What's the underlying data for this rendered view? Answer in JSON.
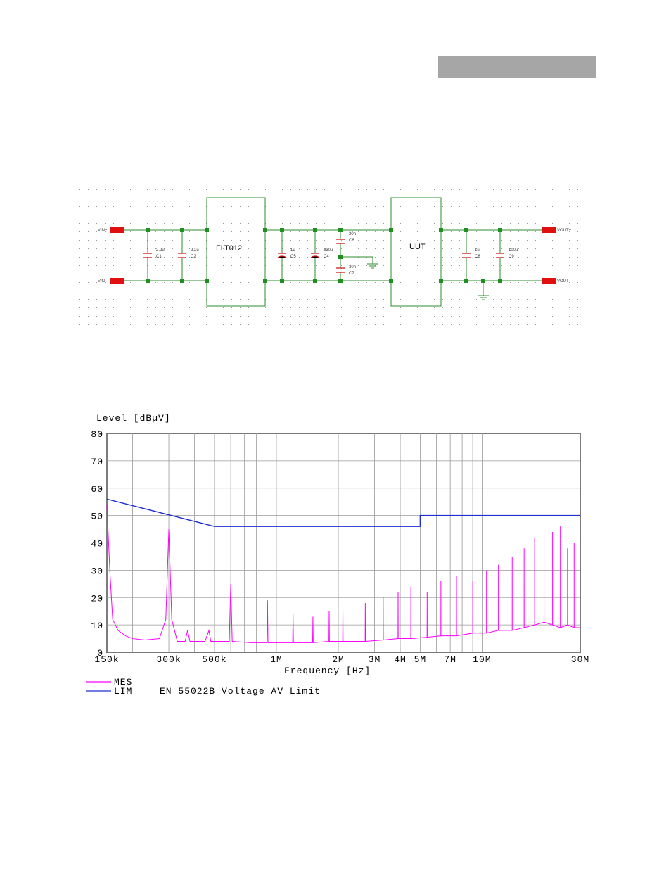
{
  "schematic": {
    "ports": [
      "VIN+",
      "VIN-",
      "VOUT+",
      "VOUT-"
    ],
    "blocks": [
      "FLT012",
      "UUT"
    ],
    "components": [
      {
        "value": "2.2u",
        "ref": "C1"
      },
      {
        "value": "2.2u",
        "ref": "C2"
      },
      {
        "value": "1u",
        "ref": "C5"
      },
      {
        "value": "330u",
        "ref": "C4"
      },
      {
        "value": "30n",
        "ref": "C6"
      },
      {
        "value": "30n",
        "ref": "C7"
      },
      {
        "value": "1u",
        "ref": "C8"
      },
      {
        "value": "100u",
        "ref": "C9"
      }
    ]
  },
  "chart_data": {
    "type": "line",
    "ylabel": "Level [dBµV]",
    "xlabel": "Frequency [Hz]",
    "log_x": true,
    "grid": true,
    "xlim": [
      150000,
      30000000
    ],
    "ylim": [
      0,
      80
    ],
    "xticks": [
      {
        "value": 150000,
        "label": "150k"
      },
      {
        "value": 300000,
        "label": "300k"
      },
      {
        "value": 500000,
        "label": "500k"
      },
      {
        "value": 1000000,
        "label": "1M"
      },
      {
        "value": 2000000,
        "label": "2M"
      },
      {
        "value": 3000000,
        "label": "3M"
      },
      {
        "value": 4000000,
        "label": "4M"
      },
      {
        "value": 5000000,
        "label": "5M"
      },
      {
        "value": 7000000,
        "label": "7M"
      },
      {
        "value": 10000000,
        "label": "10M"
      },
      {
        "value": 30000000,
        "label": "30M"
      }
    ],
    "xminor": [
      200000,
      400000,
      600000,
      700000,
      800000,
      900000,
      6000000,
      8000000,
      9000000,
      20000000
    ],
    "yticks": [
      0,
      10,
      20,
      30,
      40,
      50,
      60,
      70,
      80
    ],
    "series": [
      {
        "name": "MES",
        "color": "#ff00ff",
        "x": [
          150000,
          155000,
          160000,
          170000,
          185000,
          200000,
          230000,
          270000,
          290000,
          300000,
          310000,
          330000,
          360000,
          370000,
          380000,
          450000,
          470000,
          480000,
          590000,
          600000,
          610000,
          750000,
          900000,
          905000,
          910000,
          1200000,
          1205000,
          1210000,
          1500000,
          1505000,
          1510000,
          1800000,
          1805000,
          1810000,
          2100000,
          2105000,
          2110000,
          2700000,
          2705000,
          2710000,
          3300000,
          3305000,
          3310000,
          3900000,
          3905000,
          3910000,
          4500000,
          4505000,
          4510000,
          5400000,
          5405000,
          5410000,
          6300000,
          6305000,
          6310000,
          7500000,
          7505000,
          7510000,
          9000000,
          9005000,
          9010000,
          10500000,
          10505000,
          10510000,
          12000000,
          12005000,
          12010000,
          14000000,
          14005000,
          14010000,
          16000000,
          16005000,
          16010000,
          18000000,
          18005000,
          18010000,
          20000000,
          20005000,
          20010000,
          22000000,
          22005000,
          22010000,
          24000000,
          24005000,
          24010000,
          26000000,
          26005000,
          26010000,
          28000000,
          28005000,
          28010000,
          30000000
        ],
        "values": [
          54,
          30,
          12,
          8,
          6,
          5,
          4.5,
          5,
          12,
          45,
          12,
          4,
          4,
          8,
          4,
          4,
          8,
          4,
          4,
          25,
          4,
          3.5,
          3.5,
          19,
          3.5,
          3.5,
          14,
          3.5,
          3.5,
          13,
          3.5,
          4,
          15,
          4,
          4,
          16,
          4,
          4,
          18,
          4,
          4.5,
          20,
          4.5,
          5,
          22,
          5,
          5,
          24,
          5,
          5.5,
          22,
          5.5,
          6,
          26,
          6,
          6,
          28,
          6,
          7,
          26,
          7,
          7,
          30,
          7,
          8,
          32,
          8,
          8,
          35,
          8,
          9,
          38,
          9,
          10,
          42,
          10,
          11,
          46,
          11,
          10,
          44,
          10,
          9,
          46,
          9,
          10,
          38,
          10,
          9,
          40,
          9,
          9
        ]
      },
      {
        "name": "LIM",
        "description": "EN 55022B Voltage AV Limit",
        "color": "#1f2fd0",
        "x": [
          150000,
          500000,
          5000000,
          5000000,
          30000000
        ],
        "values": [
          56,
          46,
          46,
          50,
          50
        ]
      }
    ]
  }
}
